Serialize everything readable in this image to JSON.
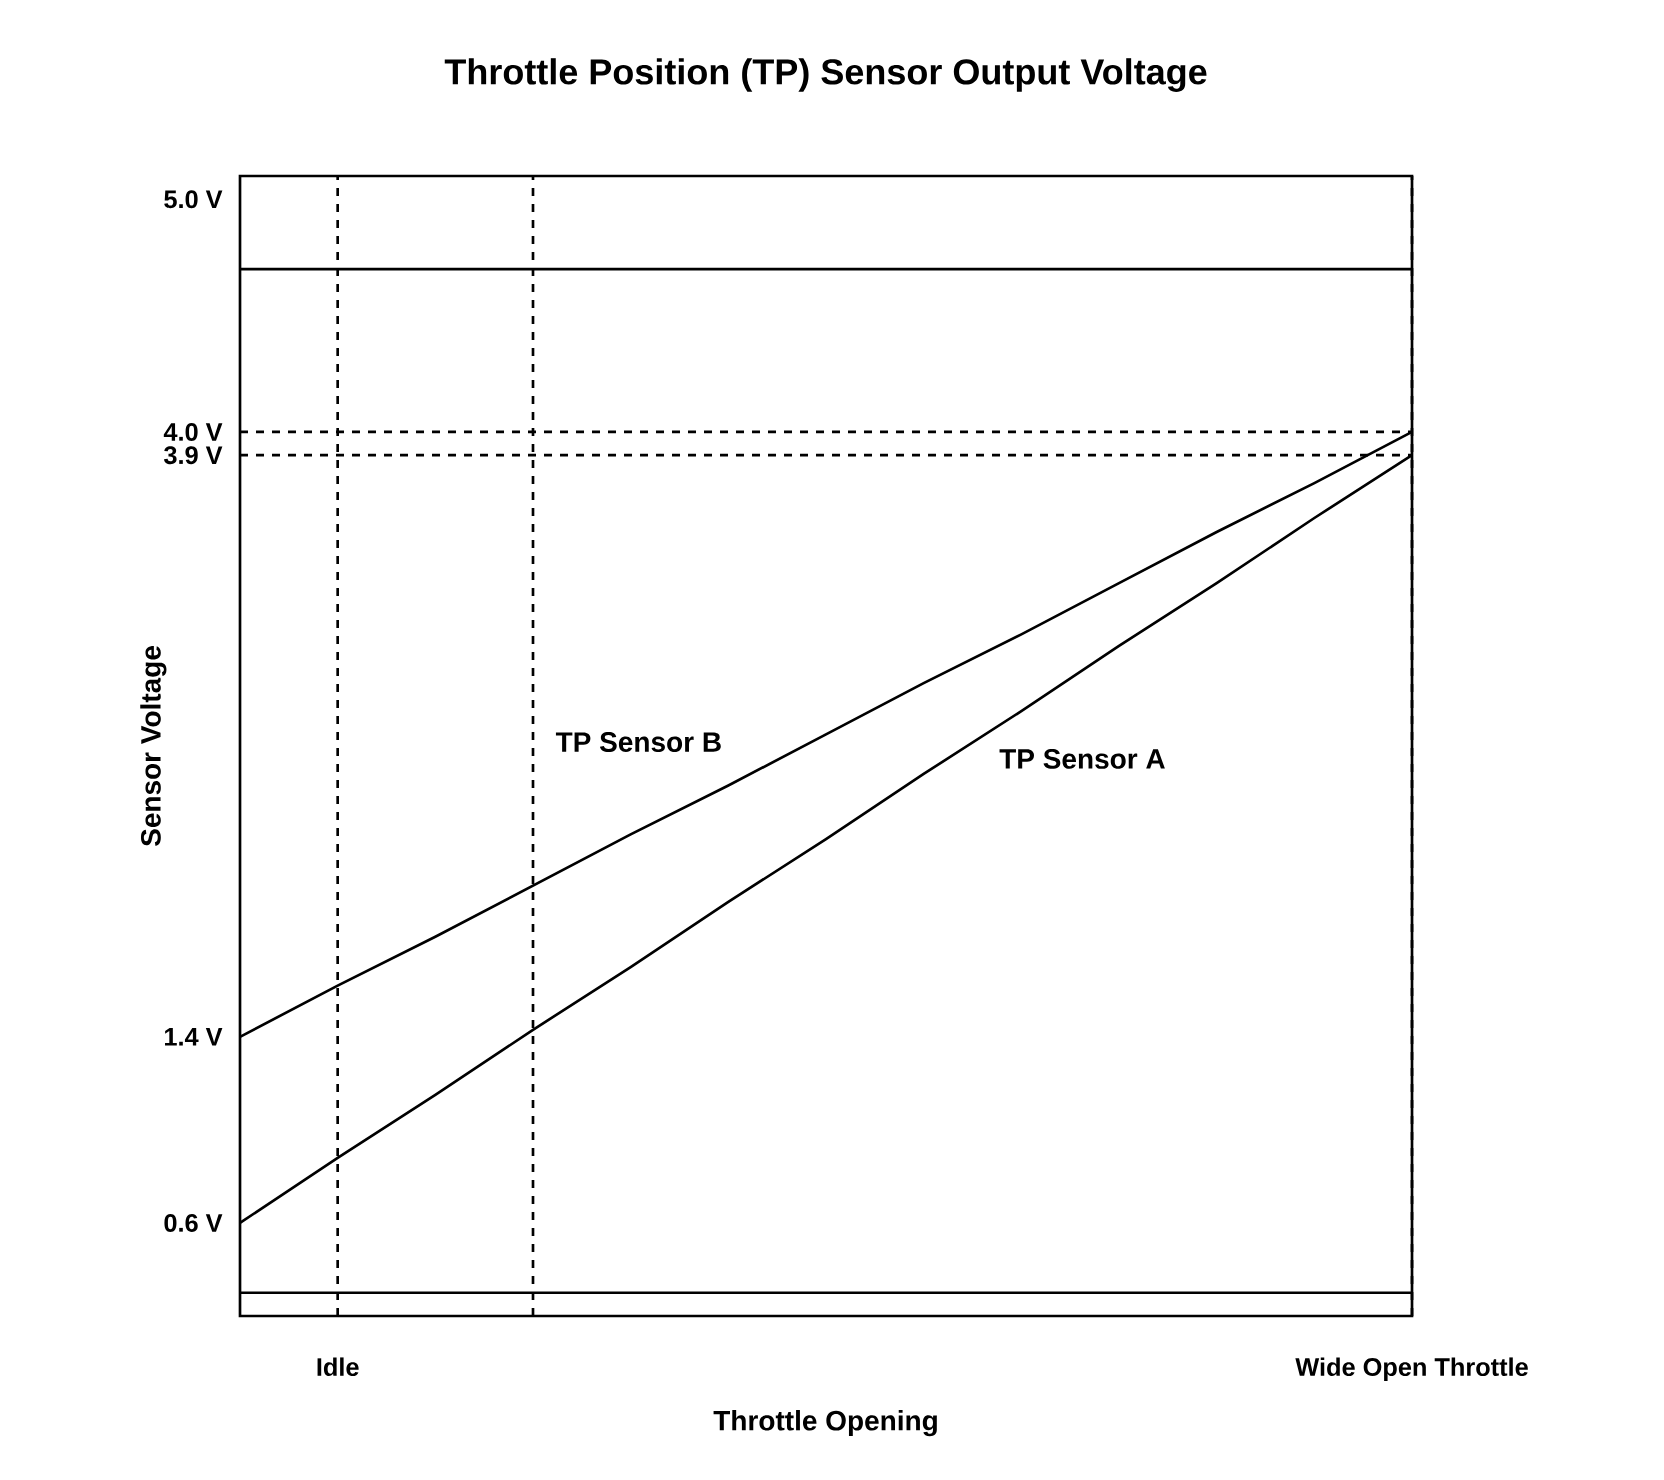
{
  "chart_data": {
    "type": "line",
    "title": "Throttle Position (TP) Sensor Output Voltage",
    "xlabel": "Throttle Opening",
    "ylabel": "Sensor Voltage",
    "categories": [
      null,
      "Idle",
      null,
      null,
      null,
      null,
      null,
      null,
      null,
      null,
      null,
      null,
      "Wide Open Throttle"
    ],
    "series": [
      {
        "name": "TP Sensor A",
        "color": "#000000",
        "values": [
          0.6,
          0.88,
          1.15,
          1.43,
          1.7,
          1.98,
          2.25,
          2.53,
          2.8,
          3.08,
          3.35,
          3.63,
          3.9
        ]
      },
      {
        "name": "TP Sensor B",
        "color": "#000000",
        "values": [
          1.4,
          1.62,
          1.83,
          2.05,
          2.27,
          2.48,
          2.7,
          2.92,
          3.13,
          3.35,
          3.57,
          3.78,
          4.0
        ]
      }
    ],
    "ylim": [
      0.2,
      5.1
    ],
    "yticks": [
      {
        "value": 0.6,
        "label": "0.6 V"
      },
      {
        "value": 1.4,
        "label": "1.4 V"
      },
      {
        "value": 3.9,
        "label": "3.9 V"
      },
      {
        "value": 4.0,
        "label": "4.0 V"
      },
      {
        "value": 5.0,
        "label": "5.0 V"
      }
    ],
    "ref_lines": [
      {
        "axis": "y",
        "value": 4.0,
        "line_style": "dashed"
      },
      {
        "axis": "y",
        "value": 3.9,
        "line_style": "dashed"
      },
      {
        "axis": "y",
        "value": 4.7,
        "line_style": "solid"
      },
      {
        "axis": "y",
        "value": 0.3,
        "line_style": "solid"
      }
    ],
    "grid": "x",
    "legend": false,
    "marker": "none",
    "line_style": "solid"
  }
}
